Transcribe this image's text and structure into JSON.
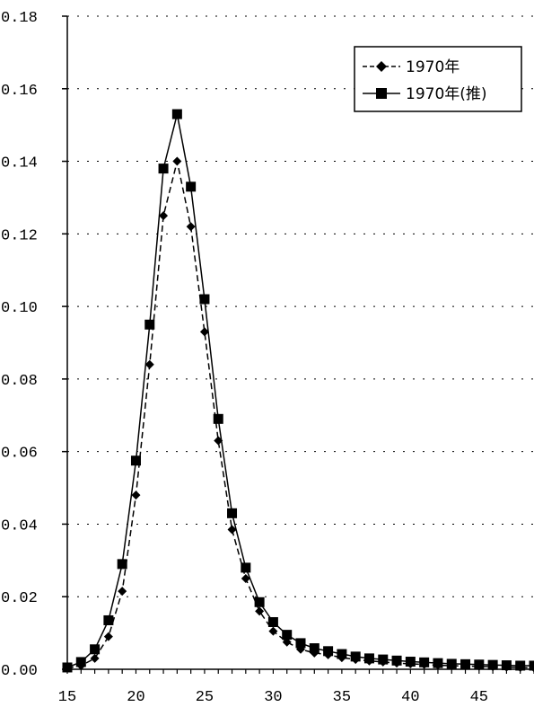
{
  "chart_data": {
    "type": "line",
    "title": "",
    "xlabel": "",
    "ylabel": "",
    "xlim": [
      15,
      49
    ],
    "ylim": [
      0,
      0.18
    ],
    "x_ticks": [
      15,
      20,
      25,
      30,
      35,
      40,
      45
    ],
    "y_ticks": [
      0,
      0.02,
      0.04,
      0.06,
      0.08,
      0.1,
      0.12,
      0.14,
      0.16,
      0.18
    ],
    "x_tick_labels": [
      "15",
      "20",
      "25",
      "30",
      "35",
      "40",
      "45"
    ],
    "y_tick_labels": [
      "0.00",
      "0.02",
      "0.04",
      "0.06",
      "0.08",
      "0.10",
      "0.12",
      "0.14",
      "0.16",
      "0.18"
    ],
    "grid": "horizontal-dotted",
    "legend_position": "top-right",
    "x": [
      15,
      16,
      17,
      18,
      19,
      20,
      21,
      22,
      23,
      24,
      25,
      26,
      27,
      28,
      29,
      30,
      31,
      32,
      33,
      34,
      35,
      36,
      37,
      38,
      39,
      40,
      41,
      42,
      43,
      44,
      45,
      46,
      47,
      48,
      49
    ],
    "series": [
      {
        "name": "1970年",
        "marker": "diamond",
        "color": "#000000",
        "values": [
          0.0003,
          0.001,
          0.003,
          0.009,
          0.0215,
          0.048,
          0.084,
          0.125,
          0.14,
          0.122,
          0.093,
          0.063,
          0.0385,
          0.025,
          0.016,
          0.0105,
          0.0075,
          0.0055,
          0.0045,
          0.004,
          0.0032,
          0.0027,
          0.0023,
          0.002,
          0.0017,
          0.0015,
          0.0013,
          0.0011,
          0.001,
          0.0009,
          0.0008,
          0.0007,
          0.0006,
          0.0005,
          0.0004
        ]
      },
      {
        "name": "1970年(推)",
        "marker": "square",
        "color": "#000000",
        "values": [
          0.0005,
          0.002,
          0.0055,
          0.0135,
          0.029,
          0.0575,
          0.095,
          0.138,
          0.153,
          0.133,
          0.102,
          0.069,
          0.043,
          0.028,
          0.0185,
          0.013,
          0.0095,
          0.0072,
          0.0058,
          0.005,
          0.0042,
          0.0035,
          0.003,
          0.0027,
          0.0024,
          0.0021,
          0.0019,
          0.0017,
          0.0015,
          0.0014,
          0.0013,
          0.0012,
          0.0011,
          0.001,
          0.001
        ]
      }
    ]
  }
}
